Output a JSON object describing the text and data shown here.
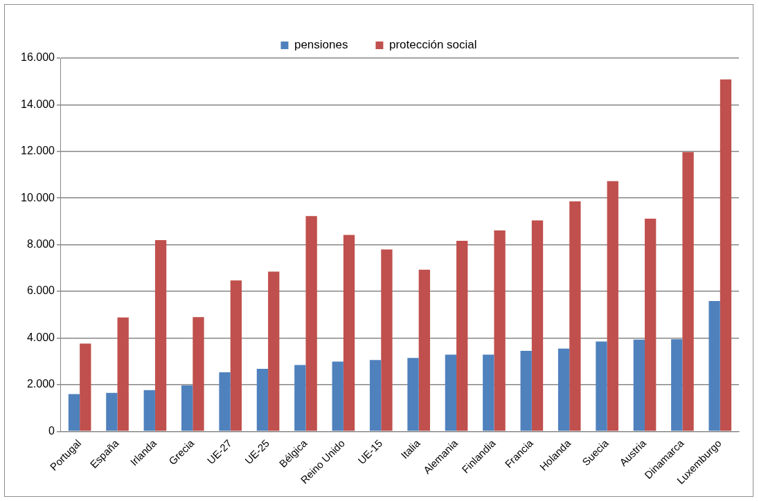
{
  "chart_data": {
    "type": "bar",
    "categories": [
      "Portugal",
      "España",
      "Irlanda",
      "Grecia",
      "UE-27",
      "UE-25",
      "Bélgica",
      "Reino Unido",
      "UE-15",
      "Italia",
      "Alemania",
      "Finlandia",
      "Francia",
      "Holanda",
      "Suecia",
      "Austria",
      "Dinamarca",
      "Luxemburgo"
    ],
    "series": [
      {
        "name": "pensiones",
        "color": "#4f81bd",
        "values": [
          1600,
          1650,
          1770,
          1970,
          2530,
          2680,
          2840,
          2990,
          3060,
          3150,
          3290,
          3290,
          3450,
          3550,
          3850,
          3930,
          3950,
          5590
        ]
      },
      {
        "name": "protección social",
        "color": "#c0504d",
        "values": [
          3760,
          4880,
          8200,
          4900,
          6470,
          6850,
          9230,
          8420,
          7800,
          6930,
          8170,
          8610,
          9040,
          9860,
          10730,
          9120,
          11970,
          15090
        ]
      }
    ],
    "ylim": [
      0,
      16000
    ],
    "yticks": [
      {
        "value": 0,
        "label": "0"
      },
      {
        "value": 2000,
        "label": "2.000"
      },
      {
        "value": 4000,
        "label": "4.000"
      },
      {
        "value": 6000,
        "label": "6.000"
      },
      {
        "value": 8000,
        "label": "8.000"
      },
      {
        "value": 10000,
        "label": "10.000"
      },
      {
        "value": 12000,
        "label": "12.000"
      },
      {
        "value": 14000,
        "label": "14.000"
      },
      {
        "value": 16000,
        "label": "16.000"
      }
    ],
    "grid": "y",
    "legend": "top"
  }
}
